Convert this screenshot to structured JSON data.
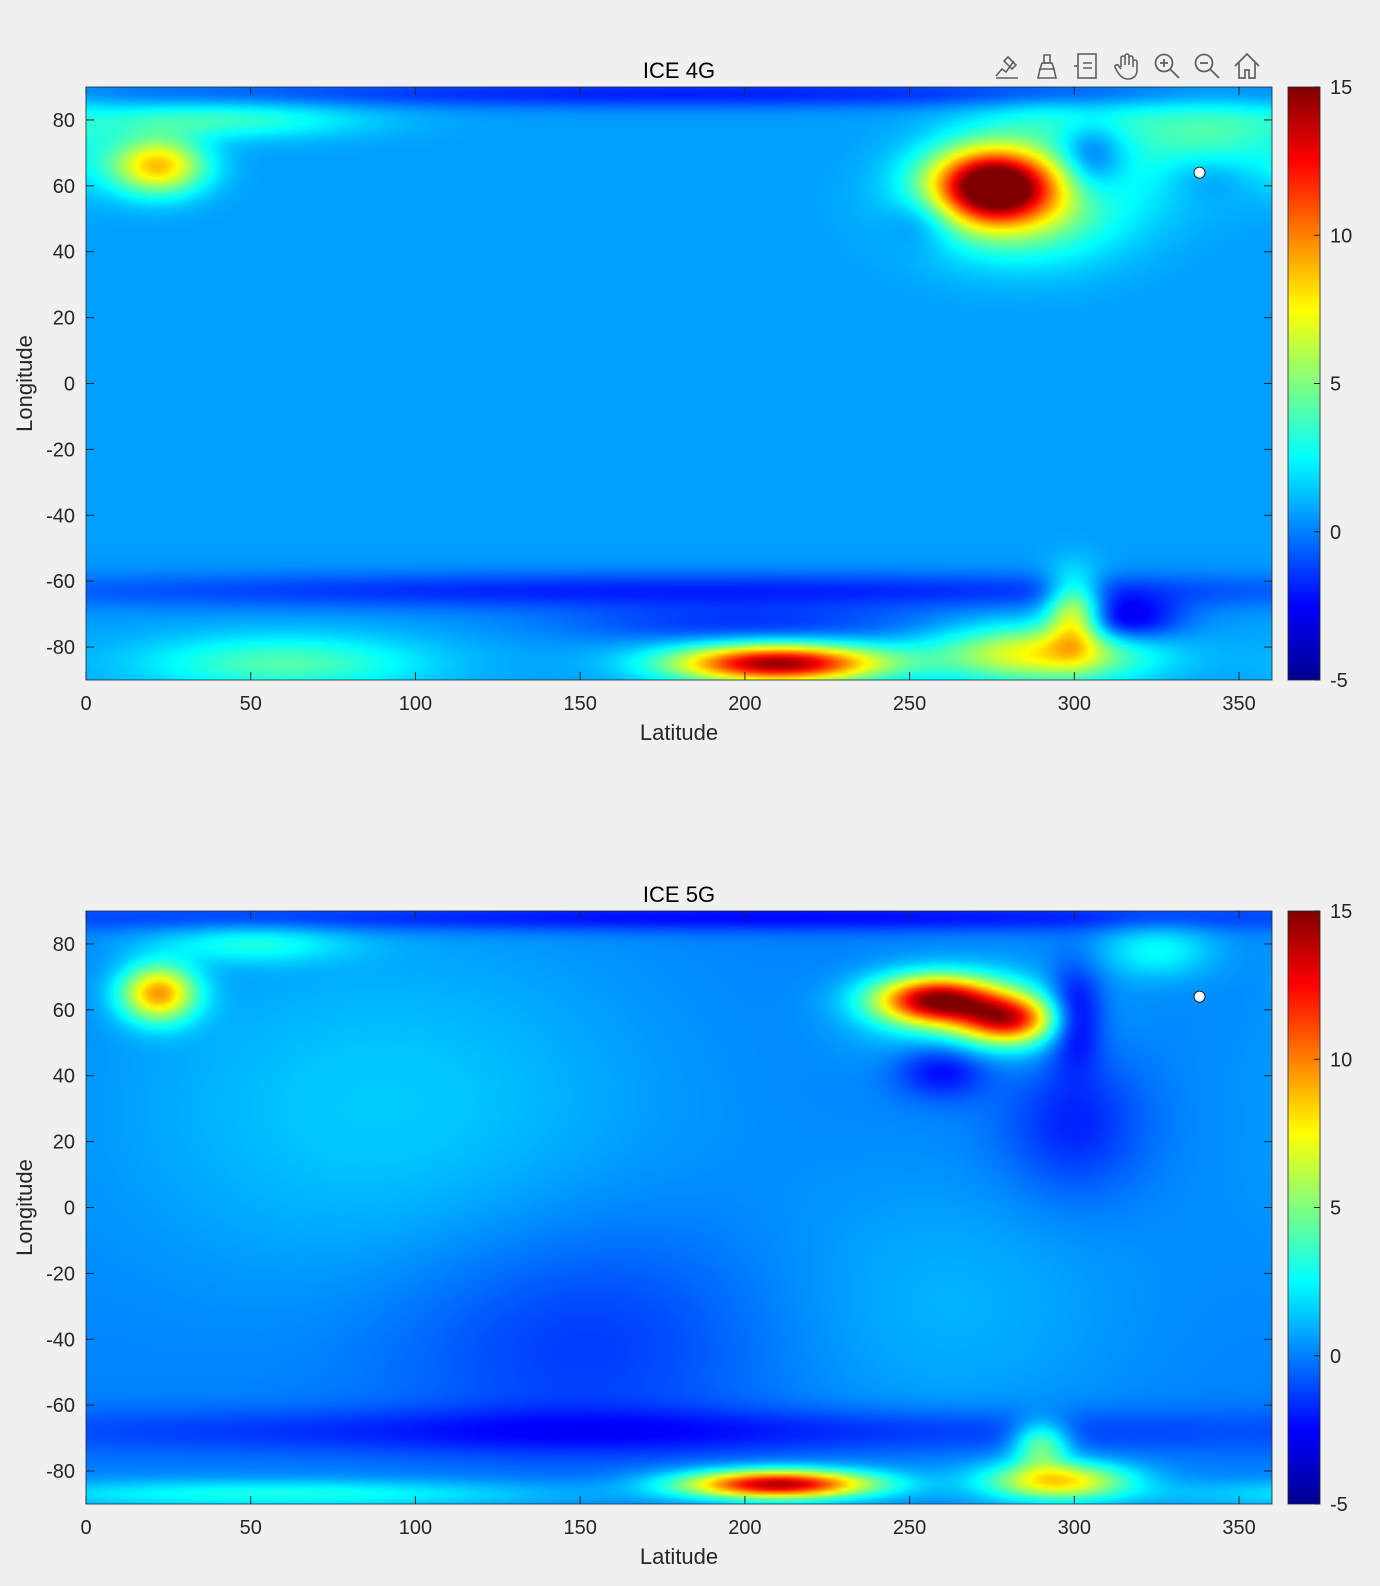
{
  "toolbar": {
    "icons": [
      "data-tips-icon",
      "brush-icon",
      "data-cursor-icon",
      "pan-hand-icon",
      "zoom-in-icon",
      "zoom-out-icon",
      "home-icon"
    ]
  },
  "colors": {
    "background": "#f0f0f0",
    "axes_text": "#262626",
    "colormap": "jet"
  },
  "chart_data": [
    {
      "type": "heatmap",
      "title": "ICE 4G",
      "xlabel": "Latitude",
      "ylabel": "Longitude",
      "xlim": [
        0,
        360
      ],
      "ylim": [
        -90,
        90
      ],
      "xticks": [
        "0",
        "50",
        "100",
        "150",
        "200",
        "250",
        "300",
        "350"
      ],
      "xtick_values": [
        0,
        50,
        100,
        150,
        200,
        250,
        300,
        350
      ],
      "yticks": [
        "80",
        "60",
        "40",
        "20",
        "0",
        "-20",
        "-40",
        "-60",
        "-80"
      ],
      "ytick_values": [
        80,
        60,
        40,
        20,
        0,
        -20,
        -40,
        -60,
        -80
      ],
      "colorbar": {
        "range": [
          -5,
          15
        ],
        "ticks": [
          "15",
          "10",
          "5",
          "0",
          "-5"
        ],
        "tick_values": [
          15,
          10,
          5,
          0,
          -5
        ]
      },
      "field": {
        "baseline": 0.6,
        "features": [
          {
            "x": 275,
            "y": 60,
            "value": 14,
            "spread_x": 13,
            "spread_y": 8
          },
          {
            "x": 285,
            "y": 55,
            "value": 5,
            "spread_x": 22,
            "spread_y": 12
          },
          {
            "x": 210,
            "y": -85,
            "value": 14,
            "spread_x": 22,
            "spread_y": 4
          },
          {
            "x": 290,
            "y": -82,
            "value": 7,
            "spread_x": 22,
            "spread_y": 6
          },
          {
            "x": 300,
            "y": -70,
            "value": 7,
            "spread_x": 6,
            "spread_y": 8
          },
          {
            "x": 22,
            "y": 66,
            "value": 8,
            "spread_x": 10,
            "spread_y": 6
          },
          {
            "x": 60,
            "y": -85,
            "value": 3.5,
            "spread_x": 30,
            "spread_y": 6
          },
          {
            "x": 40,
            "y": 80,
            "value": 3,
            "spread_x": 30,
            "spread_y": 4
          },
          {
            "x": 340,
            "y": 72,
            "value": 3.5,
            "spread_x": 18,
            "spread_y": 10
          },
          {
            "x": 300,
            "y": 80,
            "value": 2,
            "spread_x": 20,
            "spread_y": 5
          },
          {
            "x": 315,
            "y": -72,
            "value": -4,
            "spread_x": 12,
            "spread_y": 5
          },
          {
            "x": 305,
            "y": 68,
            "value": -3,
            "spread_x": 7,
            "spread_y": 8
          },
          {
            "x": 180,
            "y": 88,
            "value": -2.5,
            "spread_x": 120,
            "spread_y": 3
          },
          {
            "x": 180,
            "y": -63,
            "value": -2.5,
            "spread_x": 150,
            "spread_y": 4
          },
          {
            "x": 200,
            "y": -73,
            "value": -2,
            "spread_x": 40,
            "spread_y": 4
          },
          {
            "x": 255,
            "y": 50,
            "value": -2,
            "spread_x": 8,
            "spread_y": 6
          },
          {
            "x": 340,
            "y": 64,
            "value": -2,
            "spread_x": 10,
            "spread_y": 6
          }
        ]
      },
      "marker": {
        "x": 338,
        "y": 64
      }
    },
    {
      "type": "heatmap",
      "title": "ICE 5G",
      "xlabel": "Latitude",
      "ylabel": "Longitude",
      "xlim": [
        0,
        360
      ],
      "ylim": [
        -90,
        90
      ],
      "xticks": [
        "0",
        "50",
        "100",
        "150",
        "200",
        "250",
        "300",
        "350"
      ],
      "xtick_values": [
        0,
        50,
        100,
        150,
        200,
        250,
        300,
        350
      ],
      "yticks": [
        "80",
        "60",
        "40",
        "20",
        "0",
        "-20",
        "-40",
        "-60",
        "-80"
      ],
      "ytick_values": [
        80,
        60,
        40,
        20,
        0,
        -20,
        -40,
        -60,
        -80
      ],
      "colorbar": {
        "range": [
          -5,
          15
        ],
        "ticks": [
          "15",
          "10",
          "5",
          "0",
          "-5"
        ],
        "tick_values": [
          15,
          10,
          5,
          0,
          -5
        ]
      },
      "field": {
        "baseline": 0,
        "features": [
          {
            "x": 90,
            "y": 30,
            "value": 1.5,
            "spread_x": 60,
            "spread_y": 40
          },
          {
            "x": 260,
            "y": -30,
            "value": 1.0,
            "spread_x": 40,
            "spread_y": 30
          },
          {
            "x": 258,
            "y": 63,
            "value": 13,
            "spread_x": 13,
            "spread_y": 5
          },
          {
            "x": 280,
            "y": 57,
            "value": 10,
            "spread_x": 10,
            "spread_y": 5
          },
          {
            "x": 270,
            "y": 58,
            "value": 3,
            "spread_x": 22,
            "spread_y": 10
          },
          {
            "x": 210,
            "y": -84,
            "value": 14,
            "spread_x": 20,
            "spread_y": 3
          },
          {
            "x": 295,
            "y": -83,
            "value": 8,
            "spread_x": 15,
            "spread_y": 4
          },
          {
            "x": 290,
            "y": -72,
            "value": 5,
            "spread_x": 6,
            "spread_y": 5
          },
          {
            "x": 22,
            "y": 65,
            "value": 9,
            "spread_x": 8,
            "spread_y": 6
          },
          {
            "x": 60,
            "y": -87,
            "value": 3,
            "spread_x": 60,
            "spread_y": 3
          },
          {
            "x": 50,
            "y": 80,
            "value": 2.5,
            "spread_x": 20,
            "spread_y": 4
          },
          {
            "x": 325,
            "y": 78,
            "value": 2.5,
            "spread_x": 12,
            "spread_y": 6
          },
          {
            "x": 300,
            "y": 58,
            "value": -4,
            "spread_x": 6,
            "spread_y": 10
          },
          {
            "x": 260,
            "y": 42,
            "value": -3,
            "spread_x": 10,
            "spread_y": 6
          },
          {
            "x": 300,
            "y": 25,
            "value": -2,
            "spread_x": 15,
            "spread_y": 15
          },
          {
            "x": 180,
            "y": 88,
            "value": -2.5,
            "spread_x": 150,
            "spread_y": 3
          },
          {
            "x": 170,
            "y": -68,
            "value": -2,
            "spread_x": 150,
            "spread_y": 5
          },
          {
            "x": 150,
            "y": -40,
            "value": -1.5,
            "spread_x": 40,
            "spread_y": 25
          }
        ]
      },
      "marker": {
        "x": 338,
        "y": 64
      }
    }
  ]
}
